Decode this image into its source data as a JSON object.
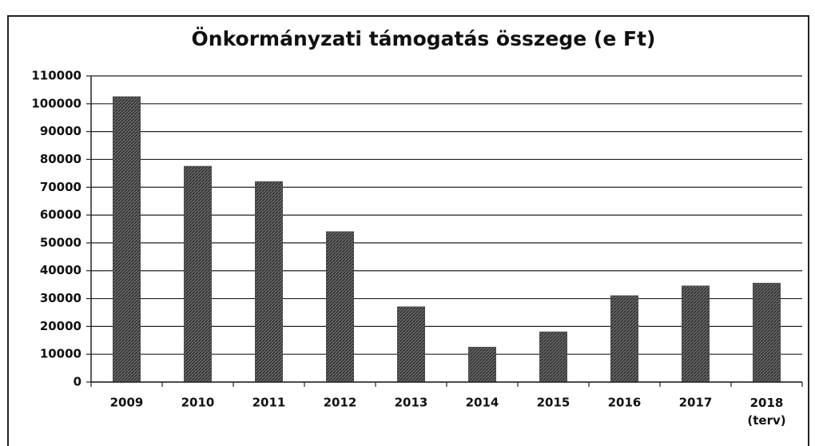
{
  "chart_data": {
    "type": "bar",
    "title": "Önkormányzati támogatás összege (e Ft)",
    "categories": [
      "2009",
      "2010",
      "2011",
      "2012",
      "2013",
      "2014",
      "2015",
      "2016",
      "2017",
      "2018 (terv)"
    ],
    "values": [
      102500,
      77500,
      72000,
      54000,
      27000,
      12500,
      18000,
      31000,
      34500,
      35500
    ],
    "color": "#4a4a4a",
    "ylim": [
      0,
      110000
    ],
    "yticks": [
      0,
      10000,
      20000,
      30000,
      40000,
      50000,
      60000,
      70000,
      80000,
      90000,
      100000,
      110000
    ],
    "grid": true
  }
}
